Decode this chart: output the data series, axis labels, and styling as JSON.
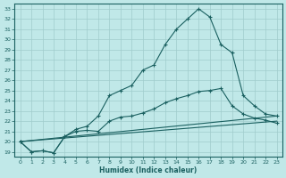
{
  "xlabel": "Humidex (Indice chaleur)",
  "bg_color": "#c0e8e8",
  "grid_color": "#a0cccc",
  "line_color": "#1a6060",
  "xlim": [
    -0.5,
    23.5
  ],
  "ylim": [
    18.5,
    33.5
  ],
  "xticks": [
    0,
    1,
    2,
    3,
    4,
    5,
    6,
    7,
    8,
    9,
    10,
    11,
    12,
    13,
    14,
    15,
    16,
    17,
    18,
    19,
    20,
    21,
    22,
    23
  ],
  "yticks": [
    19,
    20,
    21,
    22,
    23,
    24,
    25,
    26,
    27,
    28,
    29,
    30,
    31,
    32,
    33
  ],
  "curve1_x": [
    0,
    1,
    2,
    3,
    4,
    5,
    6,
    7,
    8,
    9,
    10,
    11,
    12,
    13,
    14,
    15,
    16,
    17,
    18,
    19,
    20,
    21,
    22,
    23
  ],
  "curve1_y": [
    20.0,
    19.0,
    19.1,
    18.9,
    20.5,
    21.2,
    21.5,
    22.5,
    24.5,
    25.0,
    25.5,
    27.0,
    27.5,
    29.5,
    31.0,
    32.0,
    33.0,
    32.2,
    29.5,
    28.7,
    24.5,
    23.5,
    22.7,
    22.5
  ],
  "curve2_x": [
    0,
    1,
    2,
    3,
    4,
    5,
    6,
    7,
    8,
    9,
    10,
    11,
    12,
    13,
    14,
    15,
    16,
    17,
    18,
    19,
    20,
    21,
    22,
    23
  ],
  "curve2_y": [
    20.0,
    19.0,
    19.1,
    18.9,
    20.5,
    21.0,
    21.1,
    21.0,
    22.0,
    22.4,
    22.5,
    22.8,
    23.2,
    23.8,
    24.2,
    24.5,
    24.9,
    25.0,
    25.2,
    23.5,
    22.7,
    22.3,
    22.1,
    21.8
  ],
  "curve3_x": [
    0,
    23
  ],
  "curve3_y": [
    20.0,
    22.5
  ],
  "curve4_x": [
    0,
    23
  ],
  "curve4_y": [
    20.0,
    22.0
  ]
}
